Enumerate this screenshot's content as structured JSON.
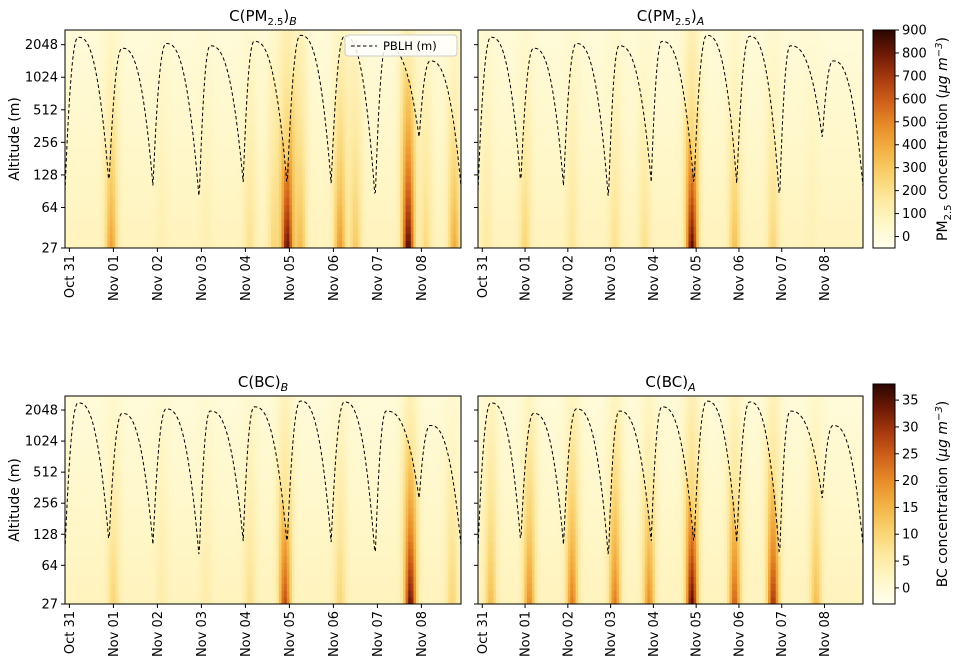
{
  "colors": {
    "colormap": [
      "#ffffef",
      "#fff7c8",
      "#fde9a0",
      "#f9d26f",
      "#f3b347",
      "#e88e2a",
      "#d0621a",
      "#a83a0f",
      "#6e1a06",
      "#2b0600"
    ],
    "pblh_line": "#000000"
  },
  "chart_data": [
    {
      "type": "heatmap",
      "title": "C(PM2.5)B",
      "ylabel": "Altitude (m)",
      "y_scale": "log2",
      "y_ticks": [
        "27",
        "64",
        "128",
        "256",
        "512",
        "1024",
        "2048"
      ],
      "x_ticks": [
        "Oct 31",
        "Nov 01",
        "Nov 02",
        "Nov 03",
        "Nov 04",
        "Nov 05",
        "Nov 06",
        "Nov 07",
        "Nov 08"
      ],
      "x_range_days": [
        0,
        9
      ],
      "legend": {
        "label": "PBLH (m)",
        "position": "top-right"
      },
      "pollution_events": [
        {
          "day": 1.05,
          "peak": 430
        },
        {
          "day": 2.2,
          "peak": 110
        },
        {
          "day": 3.2,
          "peak": 110
        },
        {
          "day": 4.2,
          "peak": 200
        },
        {
          "day": 4.75,
          "peak": 250
        },
        {
          "day": 5.05,
          "peak": 830
        },
        {
          "day": 5.35,
          "peak": 350
        },
        {
          "day": 6.25,
          "peak": 450
        },
        {
          "day": 6.6,
          "peak": 300
        },
        {
          "day": 7.8,
          "peak": 870
        },
        {
          "day": 8.2,
          "peak": 230
        },
        {
          "day": 8.85,
          "peak": 400
        }
      ]
    },
    {
      "type": "heatmap",
      "title": "C(PM2.5)A",
      "y_scale": "log2",
      "y_ticks": [
        "27",
        "64",
        "128",
        "256",
        "512",
        "1024",
        "2048"
      ],
      "x_ticks": [
        "Oct 31",
        "Nov 01",
        "Nov 02",
        "Nov 03",
        "Nov 04",
        "Nov 05",
        "Nov 06",
        "Nov 07",
        "Nov 08"
      ],
      "x_range_days": [
        0,
        9
      ],
      "colorbar": {
        "label": "PM2.5 concentration (μg m−3)",
        "ticks": [
          "900",
          "800",
          "700",
          "600",
          "500",
          "400",
          "300",
          "200",
          "100",
          "0"
        ],
        "range": [
          -50,
          900
        ]
      },
      "pollution_events": [
        {
          "day": 0.2,
          "peak": 150
        },
        {
          "day": 1.1,
          "peak": 250
        },
        {
          "day": 2.2,
          "peak": 180
        },
        {
          "day": 3.2,
          "peak": 200
        },
        {
          "day": 3.9,
          "peak": 200
        },
        {
          "day": 5.0,
          "peak": 850
        },
        {
          "day": 6.0,
          "peak": 330
        },
        {
          "day": 6.9,
          "peak": 250
        },
        {
          "day": 7.8,
          "peak": 100
        }
      ]
    },
    {
      "type": "heatmap",
      "title": "C(BC)B",
      "ylabel": "Altitude (m)",
      "y_scale": "log2",
      "y_ticks": [
        "27",
        "64",
        "128",
        "256",
        "512",
        "1024",
        "2048"
      ],
      "x_ticks": [
        "Oct 31",
        "Nov 01",
        "Nov 02",
        "Nov 03",
        "Nov 04",
        "Nov 05",
        "Nov 06",
        "Nov 07",
        "Nov 08"
      ],
      "x_range_days": [
        0,
        9
      ],
      "pollution_events": [
        {
          "day": 1.1,
          "peak": 10
        },
        {
          "day": 2.2,
          "peak": 5
        },
        {
          "day": 3.2,
          "peak": 5
        },
        {
          "day": 4.2,
          "peak": 8
        },
        {
          "day": 5.0,
          "peak": 27
        },
        {
          "day": 6.25,
          "peak": 10
        },
        {
          "day": 7.85,
          "peak": 35
        },
        {
          "day": 8.8,
          "peak": 10
        }
      ]
    },
    {
      "type": "heatmap",
      "title": "C(BC)A",
      "y_scale": "log2",
      "y_ticks": [
        "27",
        "64",
        "128",
        "256",
        "512",
        "1024",
        "2048"
      ],
      "x_ticks": [
        "Oct 31",
        "Nov 01",
        "Nov 02",
        "Nov 03",
        "Nov 04",
        "Nov 05",
        "Nov 06",
        "Nov 07",
        "Nov 08"
      ],
      "x_range_days": [
        0,
        9
      ],
      "colorbar": {
        "label": "BC concentration (μg m−3)",
        "ticks": [
          "35",
          "30",
          "25",
          "20",
          "15",
          "10",
          "5",
          "0"
        ],
        "range": [
          -3,
          38
        ]
      },
      "pollution_events": [
        {
          "day": 0.3,
          "peak": 14
        },
        {
          "day": 1.2,
          "peak": 20
        },
        {
          "day": 2.2,
          "peak": 22
        },
        {
          "day": 3.2,
          "peak": 22
        },
        {
          "day": 4.0,
          "peak": 20
        },
        {
          "day": 5.0,
          "peak": 36
        },
        {
          "day": 6.0,
          "peak": 25
        },
        {
          "day": 6.9,
          "peak": 30
        },
        {
          "day": 7.9,
          "peak": 14
        }
      ]
    }
  ],
  "pblh": {
    "label": "PBLH (m)",
    "daily_max_m": [
      2400,
      1900,
      2100,
      2000,
      2200,
      2500,
      2450,
      2000,
      1450
    ],
    "daily_min_m": [
      90,
      105,
      100,
      75,
      110,
      100,
      105,
      75,
      280,
      100
    ],
    "min_hour": [
      0.0,
      1.0,
      2.0,
      3.05,
      4.05,
      5.05,
      6.05,
      7.05,
      8.05,
      9.0
    ],
    "max_hour": [
      0.3,
      1.3,
      2.3,
      3.3,
      4.3,
      5.35,
      6.35,
      7.3,
      8.3
    ]
  }
}
